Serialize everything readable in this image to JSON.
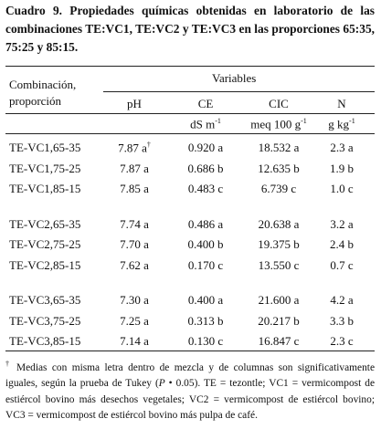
{
  "caption": {
    "label": "Cuadro 9.",
    "text": "Propiedades químicas obtenidas en laboratorio de las combinaciones TE:VC1, TE:VC2 y TE:VC3 en las proporciones 65:35, 75:25 y 85:15."
  },
  "table": {
    "stub_header": "Combinación, proporción",
    "group_header": "Variables",
    "columns": [
      "pH",
      "CE",
      "CIC",
      "N"
    ],
    "units": [
      null,
      {
        "text": "dS m",
        "sup": "-1"
      },
      {
        "text": "meq 100 g",
        "sup": "-1"
      },
      {
        "text": "g kg",
        "sup": "-1"
      }
    ],
    "note_mark": "†",
    "groups": [
      [
        [
          "TE-VC1,65-35",
          "7.87 a",
          "0.920 a",
          "18.532 a",
          "2.3 a"
        ],
        [
          "TE-VC1,75-25",
          "7.87 a",
          "0.686 b",
          "12.635 b",
          "1.9 b"
        ],
        [
          "TE-VC1,85-15",
          "7.85 a",
          "0.483 c",
          "6.739 c",
          "1.0 c"
        ]
      ],
      [
        [
          "TE-VC2,65-35",
          "7.74 a",
          "0.486 a",
          "20.638 a",
          "3.2 a"
        ],
        [
          "TE-VC2,75-25",
          "7.70 a",
          "0.400 b",
          "19.375 b",
          "2.4 b"
        ],
        [
          "TE-VC2,85-15",
          "7.62 a",
          "0.170 c",
          "13.550 c",
          "0.7 c"
        ]
      ],
      [
        [
          "TE-VC3,65-35",
          "7.30 a",
          "0.400 a",
          "21.600 a",
          "4.2 a"
        ],
        [
          "TE-VC3,75-25",
          "7.25 a",
          "0.313 b",
          "20.217 b",
          "3.3 b"
        ],
        [
          "TE-VC3,85-15",
          "7.14 a",
          "0.130 c",
          "16.847 c",
          "2.3 c"
        ]
      ]
    ]
  },
  "footnote": {
    "mark": "†",
    "before": "Medias con misma letra dentro de mezcla y de columnas son significativamente iguales, según la prueba de Tukey (",
    "italic": "P",
    "after": " • 0.05). TE = tezontle; VC1 = vermicompost de estiércol bovino más desechos vegetales; VC2 = vermicompost de estiércol bovino; VC3 = vermicompost de estiércol bovino más pulpa de café."
  }
}
